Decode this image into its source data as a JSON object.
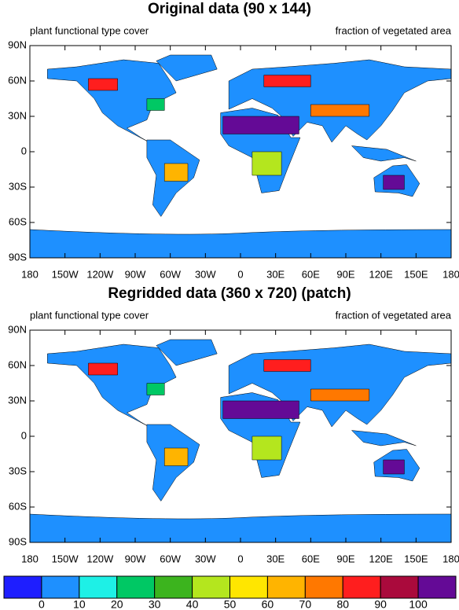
{
  "panels": [
    {
      "title": "Original data (90 x 144)",
      "left_label": "plant functional type cover",
      "right_label": "fraction of vegetated area",
      "lat_labels": [
        "90N",
        "60N",
        "30N",
        "0",
        "30S",
        "60S",
        "90S"
      ],
      "lon_labels": [
        "180",
        "150W",
        "120W",
        "90W",
        "60W",
        "30W",
        "0",
        "30E",
        "60E",
        "90E",
        "120E",
        "150E",
        "180"
      ]
    },
    {
      "title": "Regridded data (360 x 720) (patch)",
      "left_label": "plant functional type cover",
      "right_label": "fraction of vegetated area",
      "lat_labels": [
        "90N",
        "60N",
        "30N",
        "0",
        "30S",
        "60S",
        "90S"
      ],
      "lon_labels": [
        "180",
        "150W",
        "120W",
        "90W",
        "60W",
        "30W",
        "0",
        "30E",
        "60E",
        "90E",
        "120E",
        "150E",
        "180"
      ]
    }
  ],
  "colorbar": {
    "colors": [
      "#1e1eff",
      "#1e90ff",
      "#1ef0e6",
      "#00c864",
      "#3cb41e",
      "#b4e61e",
      "#ffe600",
      "#ffb400",
      "#ff7800",
      "#ff1e1e",
      "#aa0a3c",
      "#640a96"
    ],
    "labels": [
      "0",
      "10",
      "20",
      "30",
      "40",
      "50",
      "60",
      "70",
      "80",
      "90",
      "100"
    ]
  }
}
